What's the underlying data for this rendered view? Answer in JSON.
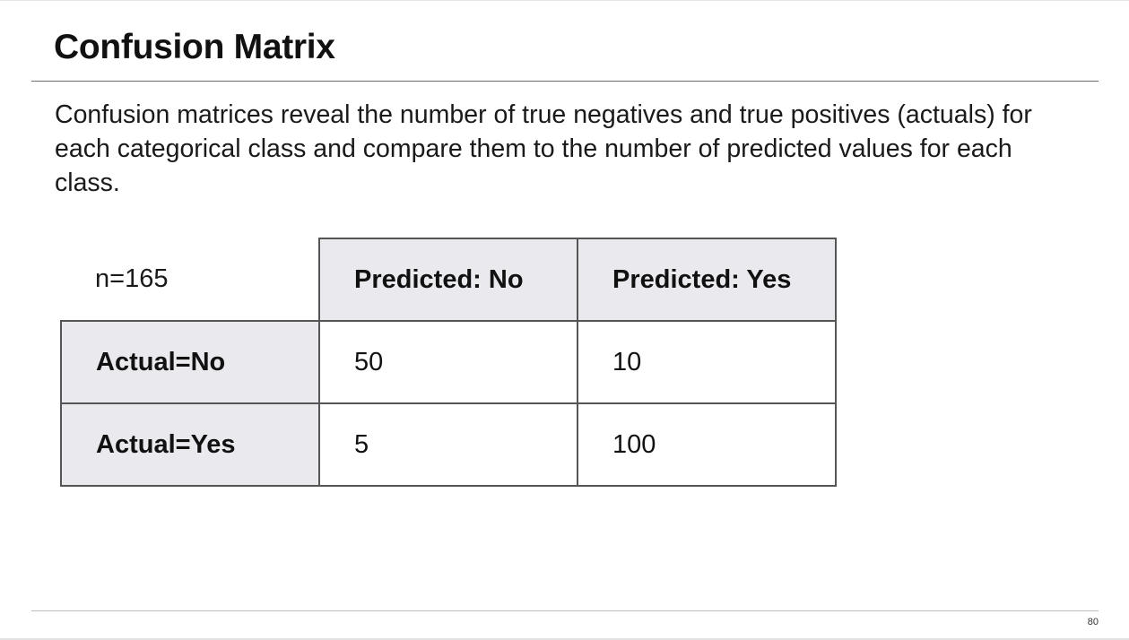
{
  "slide": {
    "title": "Confusion Matrix",
    "body": "Confusion matrices reveal the number of true negatives and true positives (actuals) for each categorical class and compare them to the number of predicted values for each class.",
    "page_number": "80"
  },
  "matrix": {
    "corner_label": "n=165",
    "columns": [
      "Predicted: No",
      "Predicted: Yes"
    ],
    "rows": [
      {
        "label": "Actual=No",
        "values": [
          "50",
          "10"
        ]
      },
      {
        "label": "Actual=Yes",
        "values": [
          "5",
          "100"
        ]
      }
    ]
  },
  "colors": {
    "header_fill": "#e9e9ee",
    "border": "#555555",
    "rule": "#6f6f6f"
  }
}
